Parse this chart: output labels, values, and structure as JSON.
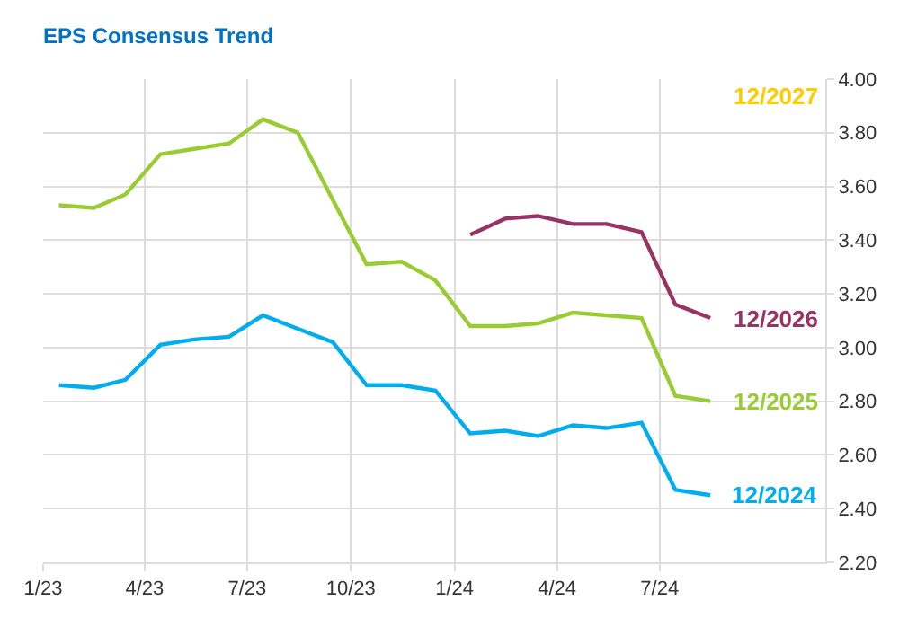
{
  "chart_data": {
    "type": "line",
    "title": "EPS Consensus Trend",
    "x": [
      "2023-01-15",
      "2023-02-15",
      "2023-03-15",
      "2023-04-15",
      "2023-05-15",
      "2023-06-15",
      "2023-07-15",
      "2023-08-15",
      "2023-09-15",
      "2023-10-15",
      "2023-11-15",
      "2023-12-15",
      "2024-01-15",
      "2024-02-15",
      "2024-03-15",
      "2024-04-15",
      "2024-05-15",
      "2024-06-15",
      "2024-07-15",
      "2024-08-15"
    ],
    "series": [
      {
        "name": "12/2024",
        "color": "#00aeef",
        "values": [
          2.86,
          2.85,
          2.88,
          3.01,
          3.03,
          3.04,
          3.12,
          3.07,
          3.02,
          2.86,
          2.86,
          2.84,
          2.68,
          2.69,
          2.67,
          2.71,
          2.7,
          2.72,
          2.47,
          2.45
        ]
      },
      {
        "name": "12/2025",
        "color": "#99cc33",
        "values": [
          3.53,
          3.52,
          3.57,
          3.72,
          3.74,
          3.76,
          3.85,
          3.8,
          3.55,
          3.31,
          3.32,
          3.25,
          3.08,
          3.08,
          3.09,
          3.13,
          3.12,
          3.11,
          2.82,
          2.8
        ]
      },
      {
        "name": "12/2026",
        "color": "#993366",
        "values": [
          null,
          null,
          null,
          null,
          null,
          null,
          null,
          null,
          null,
          null,
          null,
          null,
          3.42,
          3.48,
          3.49,
          3.46,
          3.46,
          3.43,
          3.16,
          3.11
        ]
      },
      {
        "name": "12/2027",
        "color": "#ffcc00",
        "values": [
          null,
          null,
          null,
          null,
          null,
          null,
          null,
          null,
          null,
          null,
          null,
          null,
          null,
          null,
          null,
          null,
          null,
          null,
          null,
          null
        ]
      }
    ],
    "xlim": [
      "2023-01-01",
      "2024-11-25"
    ],
    "xticks": [
      {
        "value": "2023-01-01",
        "label": "1/23"
      },
      {
        "value": "2023-04-01",
        "label": "4/23"
      },
      {
        "value": "2023-07-01",
        "label": "7/23"
      },
      {
        "value": "2023-10-01",
        "label": "10/23"
      },
      {
        "value": "2024-01-01",
        "label": "1/24"
      },
      {
        "value": "2024-04-01",
        "label": "4/24"
      },
      {
        "value": "2024-07-01",
        "label": "7/24"
      }
    ],
    "ylim": [
      2.2,
      4.0
    ],
    "yticks": [
      {
        "value": 2.2,
        "label": "2.20"
      },
      {
        "value": 2.4,
        "label": "2.40"
      },
      {
        "value": 2.6,
        "label": "2.60"
      },
      {
        "value": 2.8,
        "label": "2.80"
      },
      {
        "value": 3.0,
        "label": "3.00"
      },
      {
        "value": 3.2,
        "label": "3.20"
      },
      {
        "value": 3.4,
        "label": "3.40"
      },
      {
        "value": 3.6,
        "label": "3.60"
      },
      {
        "value": 3.8,
        "label": "3.80"
      },
      {
        "value": 4.0,
        "label": "4.00"
      }
    ],
    "grid": true,
    "legend": false,
    "marker": "none",
    "line_style": "solid"
  }
}
